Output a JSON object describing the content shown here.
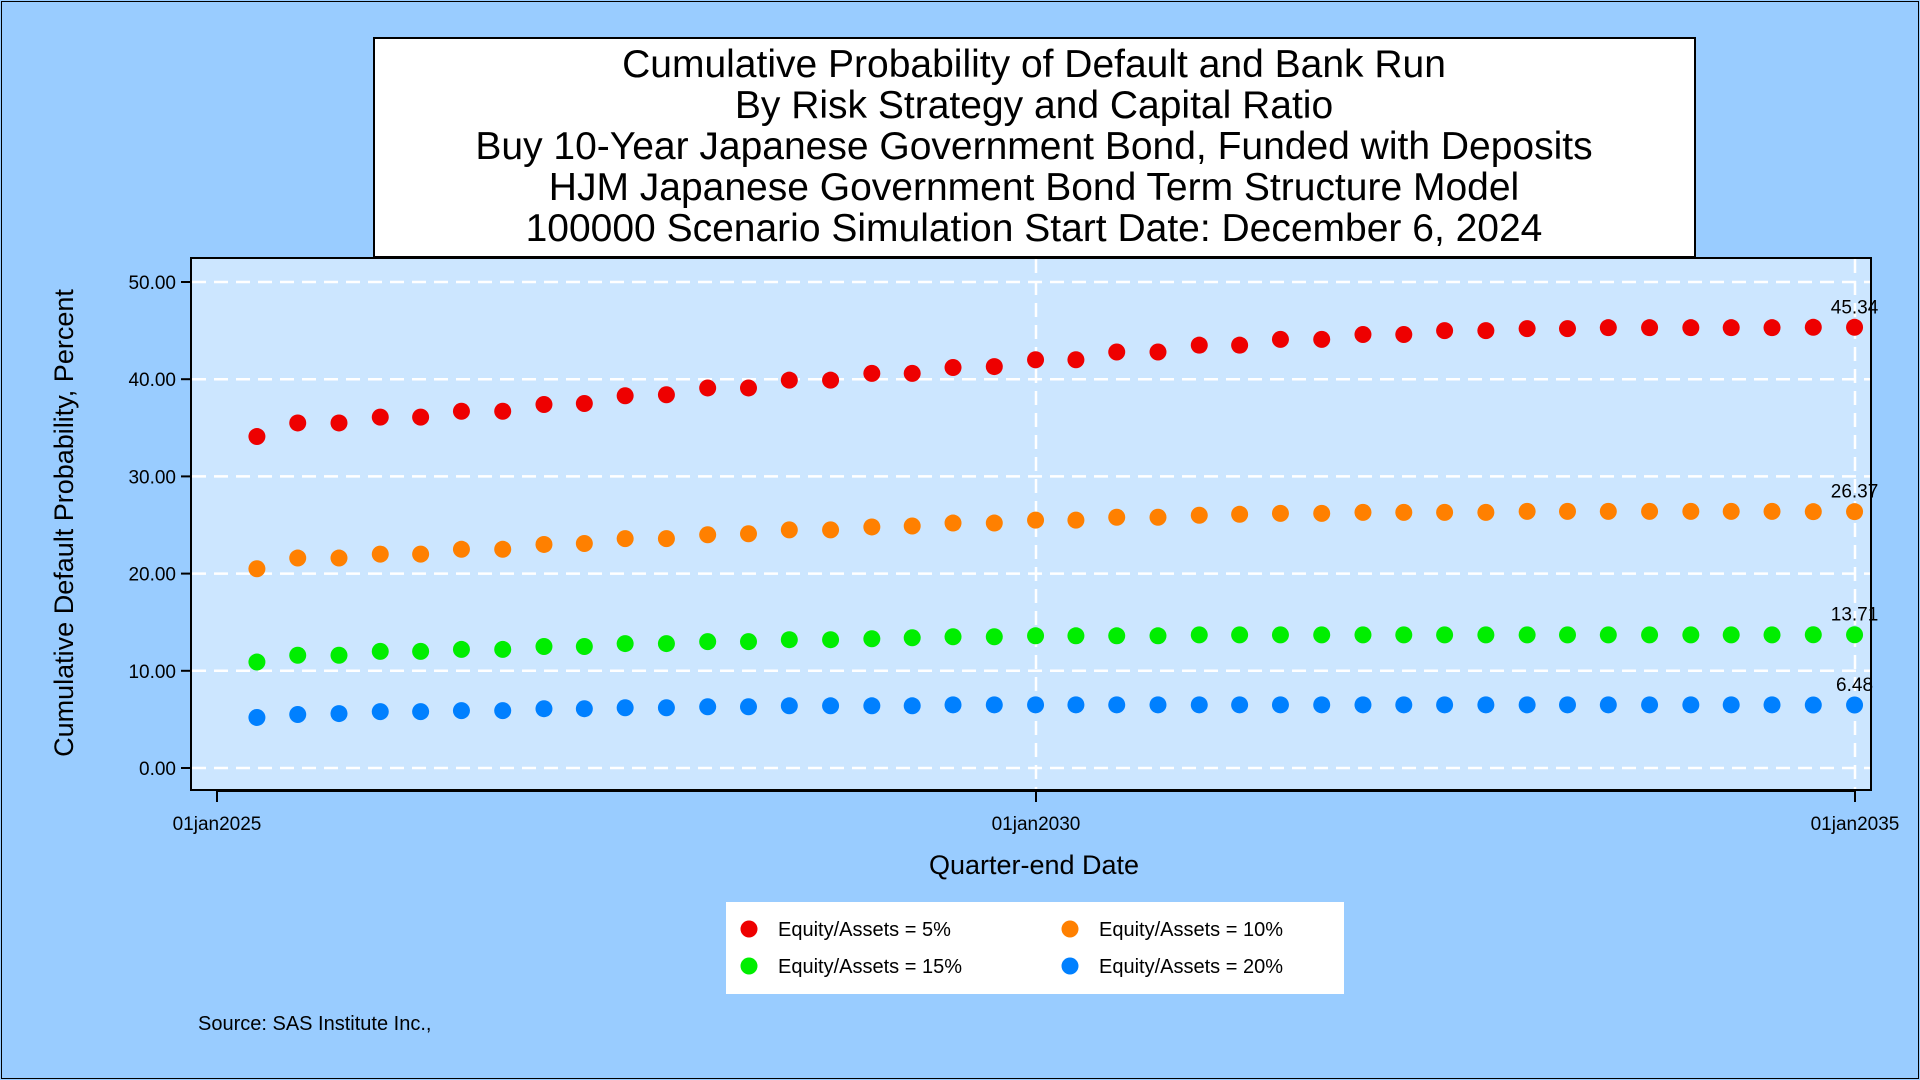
{
  "chart_data": {
    "type": "scatter",
    "title_lines": [
      "Cumulative Probability of Default and Bank Run",
      "By Risk Strategy and Capital Ratio",
      "Buy 10-Year Japanese Government Bond, Funded with Deposits",
      "HJM Japanese Government Bond Term Structure Model",
      "100000 Scenario Simulation Start Date: December 6, 2024"
    ],
    "xlabel": "Quarter-end Date",
    "ylabel": "Cumulative Default Probability, Percent",
    "x_tick_labels": [
      "01jan2025",
      "01jan2030",
      "01jan2035"
    ],
    "x_ticks": [
      "2025-01-01",
      "2030-01-01",
      "2035-01-01"
    ],
    "xlim": [
      "2025-01-01",
      "2035-01-01"
    ],
    "y_ticks": [
      "0.00",
      "10.00",
      "20.00",
      "30.00",
      "40.00",
      "50.00"
    ],
    "ylim": [
      0,
      50
    ],
    "grid": "dashed",
    "legend_position": "bottom",
    "x": [
      "2025-03-31",
      "2025-06-30",
      "2025-09-30",
      "2025-12-31",
      "2026-03-31",
      "2026-06-30",
      "2026-09-30",
      "2026-12-31",
      "2027-03-31",
      "2027-06-30",
      "2027-09-30",
      "2027-12-31",
      "2028-03-31",
      "2028-06-30",
      "2028-09-30",
      "2028-12-31",
      "2029-03-31",
      "2029-06-30",
      "2029-09-30",
      "2029-12-31",
      "2030-03-31",
      "2030-06-30",
      "2030-09-30",
      "2030-12-31",
      "2031-03-31",
      "2031-06-30",
      "2031-09-30",
      "2031-12-31",
      "2032-03-31",
      "2032-06-30",
      "2032-09-30",
      "2032-12-31",
      "2033-03-31",
      "2033-06-30",
      "2033-09-30",
      "2033-12-31",
      "2034-03-31",
      "2034-06-30",
      "2034-09-30",
      "2034-12-31"
    ],
    "series": [
      {
        "name": "Equity/Assets = 5%",
        "color": "#ee0000",
        "values": [
          34.1,
          35.5,
          35.5,
          36.1,
          36.1,
          36.7,
          36.7,
          37.4,
          37.5,
          38.3,
          38.4,
          39.1,
          39.1,
          39.9,
          39.9,
          40.6,
          40.6,
          41.2,
          41.3,
          42.0,
          42.0,
          42.8,
          42.8,
          43.5,
          43.5,
          44.1,
          44.1,
          44.6,
          44.6,
          45.0,
          45.0,
          45.2,
          45.2,
          45.3,
          45.3,
          45.3,
          45.3,
          45.3,
          45.34,
          45.34
        ],
        "end_label": "45.34"
      },
      {
        "name": "Equity/Assets = 10%",
        "color": "#ff8000",
        "values": [
          20.5,
          21.6,
          21.6,
          22.0,
          22.0,
          22.5,
          22.5,
          23.0,
          23.1,
          23.6,
          23.6,
          24.0,
          24.1,
          24.5,
          24.5,
          24.8,
          24.9,
          25.2,
          25.2,
          25.5,
          25.5,
          25.8,
          25.8,
          26.0,
          26.1,
          26.2,
          26.2,
          26.3,
          26.3,
          26.3,
          26.3,
          26.4,
          26.4,
          26.4,
          26.4,
          26.4,
          26.4,
          26.4,
          26.37,
          26.37
        ],
        "end_label": "26.37"
      },
      {
        "name": "Equity/Assets = 15%",
        "color": "#00ee00",
        "values": [
          10.9,
          11.6,
          11.6,
          12.0,
          12.0,
          12.2,
          12.2,
          12.5,
          12.5,
          12.8,
          12.8,
          13.0,
          13.0,
          13.2,
          13.2,
          13.3,
          13.4,
          13.5,
          13.5,
          13.6,
          13.6,
          13.6,
          13.6,
          13.7,
          13.7,
          13.7,
          13.7,
          13.7,
          13.7,
          13.7,
          13.7,
          13.7,
          13.7,
          13.7,
          13.7,
          13.7,
          13.7,
          13.7,
          13.71,
          13.71
        ],
        "end_label": "13.71"
      },
      {
        "name": "Equity/Assets = 20%",
        "color": "#0080ff",
        "values": [
          5.2,
          5.5,
          5.6,
          5.8,
          5.8,
          5.9,
          5.9,
          6.1,
          6.1,
          6.2,
          6.2,
          6.3,
          6.3,
          6.4,
          6.4,
          6.4,
          6.4,
          6.5,
          6.5,
          6.5,
          6.5,
          6.5,
          6.5,
          6.5,
          6.5,
          6.5,
          6.5,
          6.5,
          6.5,
          6.5,
          6.5,
          6.5,
          6.5,
          6.5,
          6.5,
          6.5,
          6.5,
          6.5,
          6.48,
          6.48
        ],
        "end_label": "6.48"
      }
    ]
  },
  "source": "Source: SAS Institute Inc.,",
  "colors": {
    "page_background": "#99ccff",
    "plot_background": "#cce6ff",
    "title_box_background": "#ffffff",
    "legend_background": "#ffffff"
  }
}
